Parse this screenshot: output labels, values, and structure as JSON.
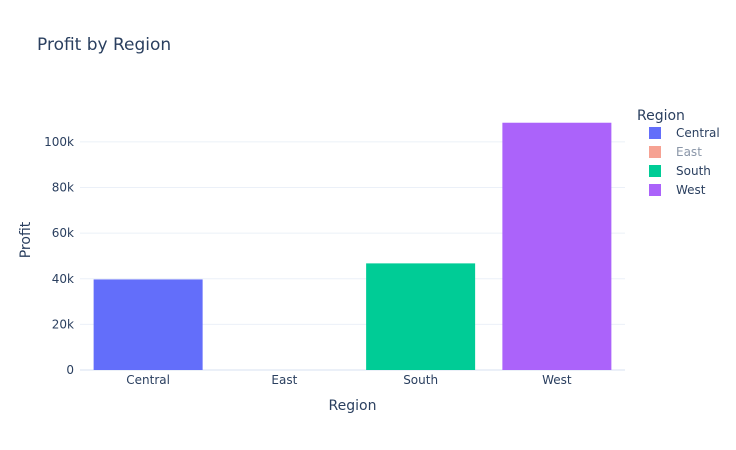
{
  "chart_data": {
    "type": "bar",
    "title": "Profit by Region",
    "xlabel": "Region",
    "ylabel": "Profit",
    "categories": [
      "Central",
      "East",
      "South",
      "West"
    ],
    "values": [
      39706,
      0,
      46749,
      108418
    ],
    "ylim": [
      0,
      114000
    ],
    "yticks": [
      0,
      20000,
      40000,
      60000,
      80000,
      100000
    ],
    "ytick_labels": [
      "0",
      "20k",
      "40k",
      "60k",
      "80k",
      "100k"
    ],
    "grid": true,
    "legend": {
      "title": "Region",
      "placement": "right",
      "items": [
        {
          "label": "Central",
          "color": "#636efa",
          "visible": true
        },
        {
          "label": "East",
          "color": "#ef553b",
          "visible": false
        },
        {
          "label": "South",
          "color": "#00cc96",
          "visible": true
        },
        {
          "label": "West",
          "color": "#ab63fa",
          "visible": true
        }
      ]
    },
    "colors": [
      "#636efa",
      "#ef553b",
      "#00cc96",
      "#ab63fa"
    ]
  }
}
